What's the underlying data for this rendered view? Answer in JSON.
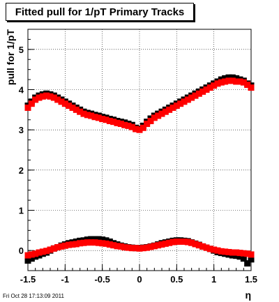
{
  "title": "Fitted pull for 1/pT  Primary Tracks",
  "footer": "Fri Oct 28 17:13:09 2011",
  "chart_data": {
    "type": "scatter",
    "title": "Fitted pull for 1/pT  Primary Tracks",
    "xlabel": "η",
    "ylabel": "pull for 1/pT",
    "xlim": [
      -1.5,
      1.5
    ],
    "ylim": [
      -0.5,
      5.5
    ],
    "x_ticks": [
      -1.5,
      -1,
      -0.5,
      0,
      0.5,
      1,
      1.5
    ],
    "x_tick_labels": [
      "-1.5",
      "-1",
      "-0.5",
      "0",
      "0.5",
      "1",
      "1.5"
    ],
    "y_ticks": [
      0,
      1,
      2,
      3,
      4,
      5
    ],
    "y_tick_labels": [
      "0",
      "1",
      "2",
      "3",
      "4",
      "5"
    ],
    "grid": true,
    "series": [
      {
        "color": "#000000",
        "x": [
          -1.5,
          -1.45,
          -1.4,
          -1.35,
          -1.3,
          -1.25,
          -1.2,
          -1.15,
          -1.1,
          -1.05,
          -1.0,
          -0.95,
          -0.9,
          -0.85,
          -0.8,
          -0.75,
          -0.7,
          -0.65,
          -0.6,
          -0.55,
          -0.5,
          -0.45,
          -0.4,
          -0.35,
          -0.3,
          -0.25,
          -0.2,
          -0.15,
          -0.1,
          -0.05,
          0.0,
          0.05,
          0.1,
          0.15,
          0.2,
          0.25,
          0.3,
          0.35,
          0.4,
          0.45,
          0.5,
          0.55,
          0.6,
          0.65,
          0.7,
          0.75,
          0.8,
          0.85,
          0.9,
          0.95,
          1.0,
          1.05,
          1.1,
          1.15,
          1.2,
          1.25,
          1.3,
          1.35,
          1.4,
          1.45,
          1.5
        ],
        "y": [
          3.6,
          3.7,
          3.8,
          3.85,
          3.88,
          3.9,
          3.88,
          3.85,
          3.8,
          3.75,
          3.7,
          3.65,
          3.6,
          3.55,
          3.5,
          3.45,
          3.42,
          3.4,
          3.37,
          3.35,
          3.32,
          3.3,
          3.27,
          3.25,
          3.22,
          3.2,
          3.18,
          3.15,
          3.12,
          3.05,
          3.02,
          3.1,
          3.2,
          3.28,
          3.35,
          3.4,
          3.45,
          3.5,
          3.55,
          3.6,
          3.65,
          3.7,
          3.75,
          3.8,
          3.85,
          3.9,
          3.95,
          4.0,
          4.05,
          4.1,
          4.15,
          4.2,
          4.25,
          4.28,
          4.3,
          4.3,
          4.28,
          4.25,
          4.22,
          4.15,
          4.1
        ]
      },
      {
        "color": "#ff0000",
        "x": [
          -1.5,
          -1.45,
          -1.4,
          -1.35,
          -1.3,
          -1.25,
          -1.2,
          -1.15,
          -1.1,
          -1.05,
          -1.0,
          -0.95,
          -0.9,
          -0.85,
          -0.8,
          -0.75,
          -0.7,
          -0.65,
          -0.6,
          -0.55,
          -0.5,
          -0.45,
          -0.4,
          -0.35,
          -0.3,
          -0.25,
          -0.2,
          -0.15,
          -0.1,
          -0.05,
          0.0,
          0.05,
          0.1,
          0.15,
          0.2,
          0.25,
          0.3,
          0.35,
          0.4,
          0.45,
          0.5,
          0.55,
          0.6,
          0.65,
          0.7,
          0.75,
          0.8,
          0.85,
          0.9,
          0.95,
          1.0,
          1.05,
          1.1,
          1.15,
          1.2,
          1.25,
          1.3,
          1.35,
          1.4,
          1.45,
          1.5
        ],
        "y": [
          3.55,
          3.65,
          3.75,
          3.8,
          3.83,
          3.85,
          3.83,
          3.8,
          3.75,
          3.7,
          3.65,
          3.6,
          3.55,
          3.5,
          3.45,
          3.4,
          3.37,
          3.35,
          3.32,
          3.3,
          3.27,
          3.25,
          3.22,
          3.2,
          3.17,
          3.15,
          3.12,
          3.1,
          3.07,
          3.02,
          3.0,
          3.05,
          3.15,
          3.22,
          3.3,
          3.35,
          3.4,
          3.45,
          3.5,
          3.55,
          3.6,
          3.65,
          3.7,
          3.75,
          3.8,
          3.85,
          3.9,
          3.95,
          4.0,
          4.05,
          4.1,
          4.15,
          4.18,
          4.2,
          4.22,
          4.22,
          4.2,
          4.2,
          4.18,
          4.12,
          4.05
        ]
      },
      {
        "color": "#000000",
        "x": [
          -1.5,
          -1.45,
          -1.4,
          -1.35,
          -1.3,
          -1.25,
          -1.2,
          -1.15,
          -1.1,
          -1.05,
          -1.0,
          -0.95,
          -0.9,
          -0.85,
          -0.8,
          -0.75,
          -0.7,
          -0.65,
          -0.6,
          -0.55,
          -0.5,
          -0.45,
          -0.4,
          -0.35,
          -0.3,
          -0.25,
          -0.2,
          -0.15,
          -0.1,
          -0.05,
          0.0,
          0.05,
          0.1,
          0.15,
          0.2,
          0.25,
          0.3,
          0.35,
          0.4,
          0.45,
          0.5,
          0.55,
          0.6,
          0.65,
          0.7,
          0.75,
          0.8,
          0.85,
          0.9,
          0.95,
          1.0,
          1.05,
          1.1,
          1.15,
          1.2,
          1.25,
          1.3,
          1.35,
          1.4,
          1.45,
          1.5
        ],
        "y": [
          -0.25,
          -0.2,
          -0.15,
          -0.12,
          -0.08,
          -0.05,
          0.0,
          0.05,
          0.08,
          0.12,
          0.15,
          0.18,
          0.2,
          0.22,
          0.24,
          0.25,
          0.27,
          0.28,
          0.28,
          0.28,
          0.27,
          0.25,
          0.22,
          0.18,
          0.15,
          0.12,
          0.1,
          0.08,
          0.07,
          0.06,
          0.06,
          0.07,
          0.08,
          0.1,
          0.12,
          0.15,
          0.18,
          0.2,
          0.22,
          0.24,
          0.25,
          0.25,
          0.24,
          0.23,
          0.2,
          0.17,
          0.14,
          0.1,
          0.07,
          0.04,
          0.0,
          -0.04,
          -0.06,
          -0.08,
          -0.1,
          -0.12,
          -0.13,
          -0.15,
          -0.2,
          -0.32,
          -0.22
        ]
      },
      {
        "color": "#ff0000",
        "x": [
          -1.5,
          -1.45,
          -1.4,
          -1.35,
          -1.3,
          -1.25,
          -1.2,
          -1.15,
          -1.1,
          -1.05,
          -1.0,
          -0.95,
          -0.9,
          -0.85,
          -0.8,
          -0.75,
          -0.7,
          -0.65,
          -0.6,
          -0.55,
          -0.5,
          -0.45,
          -0.4,
          -0.35,
          -0.3,
          -0.25,
          -0.2,
          -0.15,
          -0.1,
          -0.05,
          0.0,
          0.05,
          0.1,
          0.15,
          0.2,
          0.25,
          0.3,
          0.35,
          0.4,
          0.45,
          0.5,
          0.55,
          0.6,
          0.65,
          0.7,
          0.75,
          0.8,
          0.85,
          0.9,
          0.95,
          1.0,
          1.05,
          1.1,
          1.15,
          1.2,
          1.25,
          1.3,
          1.35,
          1.4,
          1.45,
          1.5
        ],
        "y": [
          -0.12,
          -0.1,
          -0.08,
          -0.05,
          -0.03,
          -0.01,
          0.02,
          0.05,
          0.08,
          0.1,
          0.12,
          0.14,
          0.15,
          0.16,
          0.18,
          0.19,
          0.2,
          0.2,
          0.2,
          0.19,
          0.18,
          0.17,
          0.15,
          0.13,
          0.11,
          0.1,
          0.08,
          0.07,
          0.06,
          0.06,
          0.05,
          0.06,
          0.07,
          0.09,
          0.11,
          0.13,
          0.15,
          0.17,
          0.19,
          0.21,
          0.22,
          0.22,
          0.22,
          0.21,
          0.19,
          0.16,
          0.13,
          0.1,
          0.07,
          0.04,
          0.02,
          0.0,
          -0.02,
          -0.03,
          -0.04,
          -0.05,
          -0.05,
          -0.06,
          -0.07,
          -0.08,
          -0.1
        ]
      }
    ]
  }
}
